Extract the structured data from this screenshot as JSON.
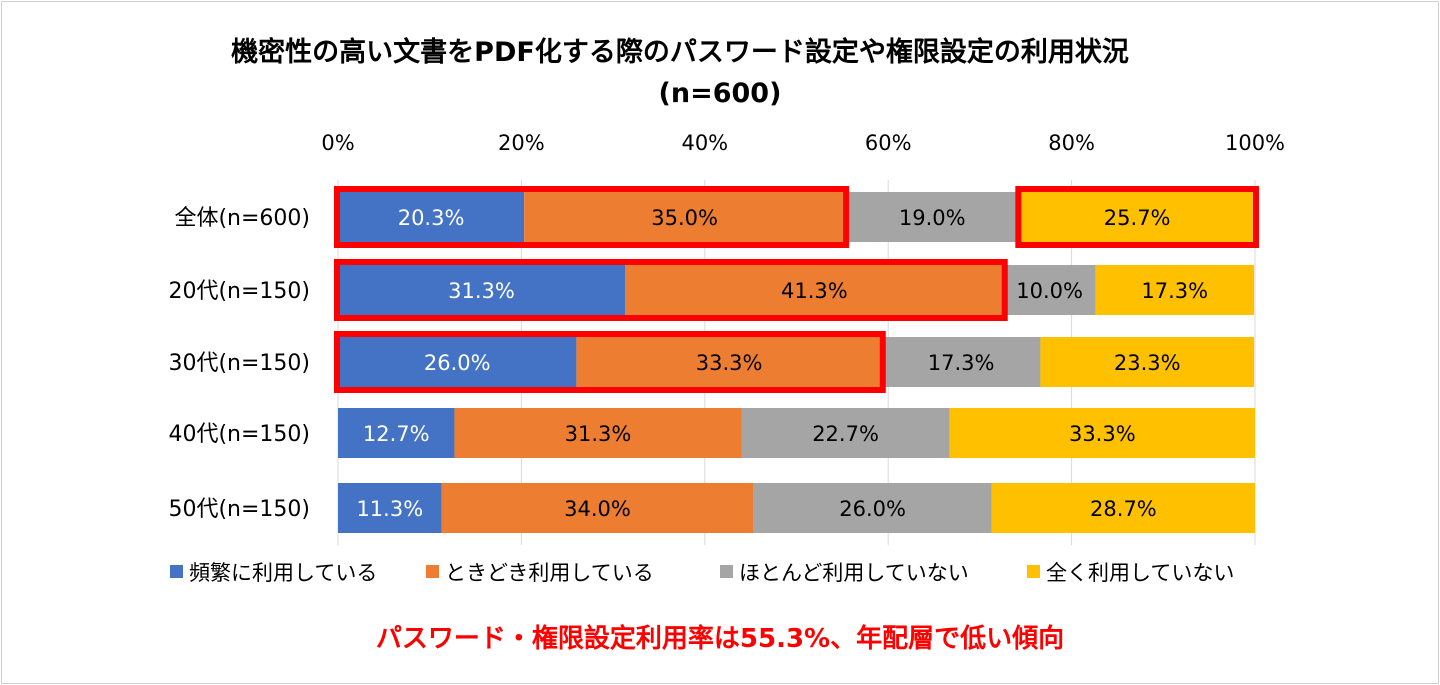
{
  "chart_data": {
    "type": "bar",
    "orientation": "horizontal",
    "stacked": "percent",
    "title": "機密性の高い文書をPDF化する際のパスワード設定や権限設定の利用状況",
    "subtitle": "(n=600)",
    "categories": [
      "全体(n=600)",
      "20代(n=150)",
      "30代(n=150)",
      "40代(n=150)",
      "50代(n=150)"
    ],
    "series": [
      {
        "name": "頻繁に利用している",
        "color": "#4472c4",
        "label_color": "#ffffff",
        "values": [
          20.3,
          31.3,
          26.0,
          12.7,
          11.3
        ]
      },
      {
        "name": "ときどき利用している",
        "color": "#ed7d31",
        "label_color": "#000000",
        "values": [
          35.0,
          41.3,
          33.3,
          31.3,
          34.0
        ]
      },
      {
        "name": "ほとんど利用していない",
        "color": "#a5a5a5",
        "label_color": "#000000",
        "values": [
          19.0,
          10.0,
          17.3,
          22.7,
          26.0
        ]
      },
      {
        "name": "全く利用していない",
        "color": "#ffc000",
        "label_color": "#000000",
        "values": [
          25.7,
          17.3,
          23.3,
          33.3,
          28.7
        ]
      }
    ],
    "data_labels": [
      [
        "20.3%",
        "35.0%",
        "19.0%",
        "25.7%"
      ],
      [
        "31.3%",
        "41.3%",
        "10.0%",
        "17.3%"
      ],
      [
        "26.0%",
        "33.3%",
        "17.3%",
        "23.3%"
      ],
      [
        "12.7%",
        "31.3%",
        "22.7%",
        "33.3%"
      ],
      [
        "11.3%",
        "34.0%",
        "26.0%",
        "28.7%"
      ]
    ],
    "xlim": [
      0,
      100
    ],
    "x_ticks": [
      "0%",
      "20%",
      "40%",
      "60%",
      "80%",
      "100%"
    ],
    "x_axis_position": "top",
    "grid": true,
    "legend": "bottom",
    "highlights": [
      {
        "row": 0,
        "from_segment": 0,
        "to_segment": 1
      },
      {
        "row": 0,
        "from_segment": 3,
        "to_segment": 3
      },
      {
        "row": 1,
        "from_segment": 0,
        "to_segment": 1
      },
      {
        "row": 2,
        "from_segment": 0,
        "to_segment": 1
      }
    ],
    "highlight_color": "#ff0000"
  },
  "caption": "パスワード・権限設定利用率は55.3%、年配層で低い傾向"
}
